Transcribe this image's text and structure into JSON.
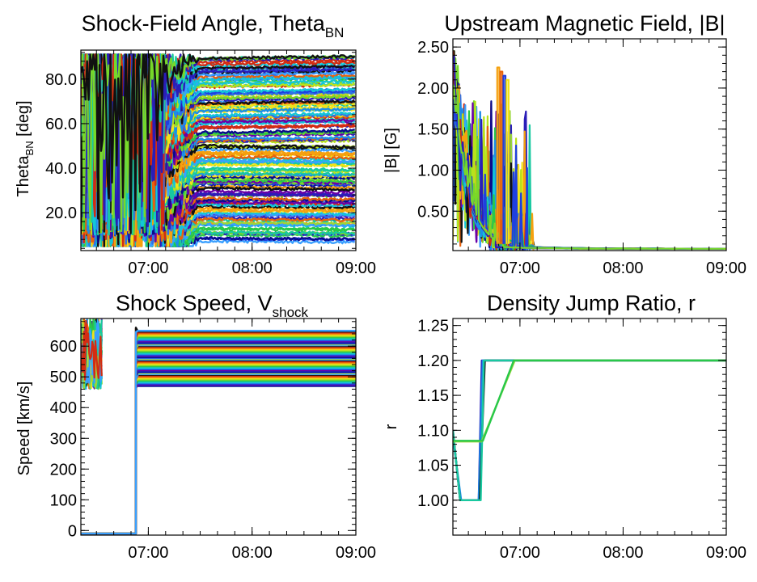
{
  "figure": {
    "description": "Four-panel time series of shock parameters along many field lines",
    "palette": [
      "#0a0a8c",
      "#2a1db8",
      "#6a00a8",
      "#1f3fe0",
      "#1c8ee8",
      "#13c6d8",
      "#19c9a0",
      "#28c84a",
      "#77d82a",
      "#b8e21c",
      "#f2e21a",
      "#f5a10f",
      "#e8620c",
      "#d42c12",
      "#111111",
      "#3aa0ff",
      "#9ad63a",
      "#2f6fe8"
    ]
  },
  "chart_data": [
    {
      "id": "theta",
      "type": "line",
      "title_main": "Shock-Field Angle, Theta",
      "title_sub": "BN",
      "ylabel_main": "Theta",
      "ylabel_sub": "BN",
      "ylabel_unit": " [deg]",
      "x_ticks": [
        "07:00",
        "08:00",
        "09:00"
      ],
      "x_tick_hours": [
        7,
        8,
        9
      ],
      "xlim_hours": [
        6.35,
        9.0
      ],
      "ylim": [
        3,
        93
      ],
      "y_ticks": [
        "20.0",
        "40.0",
        "60.0",
        "80.0"
      ],
      "y_tick_values": [
        20,
        40,
        60,
        80
      ],
      "series_count": 140,
      "series_description": "Many field lines; angles settle to constant values between ~8 and ~90 deg after ~07:15, noisy spread before ~07:10"
    },
    {
      "id": "bmag",
      "type": "line",
      "title_main": "Upstream Magnetic Field, |B|",
      "title_sub": "",
      "ylabel_main": "|B| [G]",
      "ylabel_sub": "",
      "ylabel_unit": "",
      "x_ticks": [
        "07:00",
        "08:00",
        "09:00"
      ],
      "x_tick_hours": [
        7,
        8,
        9
      ],
      "xlim_hours": [
        6.35,
        9.0
      ],
      "ylim": [
        0.02,
        2.6
      ],
      "y_ticks": [
        "0.50",
        "1.00",
        "1.50",
        "2.00",
        "2.50"
      ],
      "y_tick_values": [
        0.5,
        1.0,
        1.5,
        2.0,
        2.5
      ],
      "series_count": 120,
      "series_description": "Field strength decays from ~2.4 G at 06:20 to ~0.05 G by 07:30, flat afterwards"
    },
    {
      "id": "vshock",
      "type": "line",
      "title_main": "Shock Speed, V",
      "title_sub": "shock",
      "ylabel_main": "Speed [km/s]",
      "ylabel_sub": "",
      "ylabel_unit": "",
      "x_ticks": [
        "07:00",
        "08:00",
        "09:00"
      ],
      "x_tick_hours": [
        7,
        8,
        9
      ],
      "xlim_hours": [
        6.35,
        9.0
      ],
      "ylim": [
        -15,
        690
      ],
      "y_ticks": [
        "0",
        "100",
        "200",
        "300",
        "400",
        "500",
        "600"
      ],
      "y_tick_values": [
        0,
        100,
        200,
        300,
        400,
        500,
        600
      ],
      "series_count": 70,
      "series_description": "Constant speeds between ~470 and ~650 km/s after ~06:50, with an early drop to ~-10 km/s before the jump at ~06:53",
      "jump_time_hours": 6.88,
      "early_value": -10
    },
    {
      "id": "ratio",
      "type": "line",
      "title_main": "Density Jump Ratio, r",
      "title_sub": "",
      "ylabel_main": "r",
      "ylabel_sub": "",
      "ylabel_unit": "",
      "x_ticks": [
        "07:00",
        "08:00",
        "09:00"
      ],
      "x_tick_hours": [
        7,
        8,
        9
      ],
      "xlim_hours": [
        6.35,
        9.0
      ],
      "ylim": [
        0.95,
        1.26
      ],
      "y_ticks": [
        "1.00",
        "1.05",
        "1.10",
        "1.15",
        "1.20",
        "1.25"
      ],
      "y_tick_values": [
        1.0,
        1.05,
        1.1,
        1.15,
        1.2,
        1.25
      ],
      "series": [
        {
          "color": "#2a1db8",
          "x": [
            6.35,
            6.42,
            6.6,
            6.63,
            9.0
          ],
          "y": [
            1.1,
            1.0,
            1.0,
            1.2,
            1.2
          ]
        },
        {
          "color": "#1c8ee8",
          "x": [
            6.35,
            6.43,
            6.6,
            6.64,
            9.0
          ],
          "y": [
            1.09,
            1.0,
            1.0,
            1.2,
            1.2
          ]
        },
        {
          "color": "#111111",
          "x": [
            6.35,
            6.42,
            6.61,
            6.66,
            9.0
          ],
          "y": [
            1.1,
            1.0,
            1.0,
            1.2,
            1.2
          ]
        },
        {
          "color": "#19c9a0",
          "x": [
            6.35,
            6.42,
            6.62,
            6.65,
            9.0
          ],
          "y": [
            1.1,
            1.0,
            1.0,
            1.2,
            1.2
          ]
        },
        {
          "color": "#9ad63a",
          "x": [
            6.35,
            6.42,
            6.6,
            6.63,
            6.95,
            9.0
          ],
          "y": [
            1.084,
            1.084,
            1.084,
            1.084,
            1.2,
            1.2
          ]
        },
        {
          "color": "#28c84a",
          "x": [
            6.35,
            6.42,
            6.62,
            6.64,
            6.94,
            9.0
          ],
          "y": [
            1.085,
            1.085,
            1.085,
            1.085,
            1.2,
            1.2
          ]
        }
      ]
    }
  ]
}
